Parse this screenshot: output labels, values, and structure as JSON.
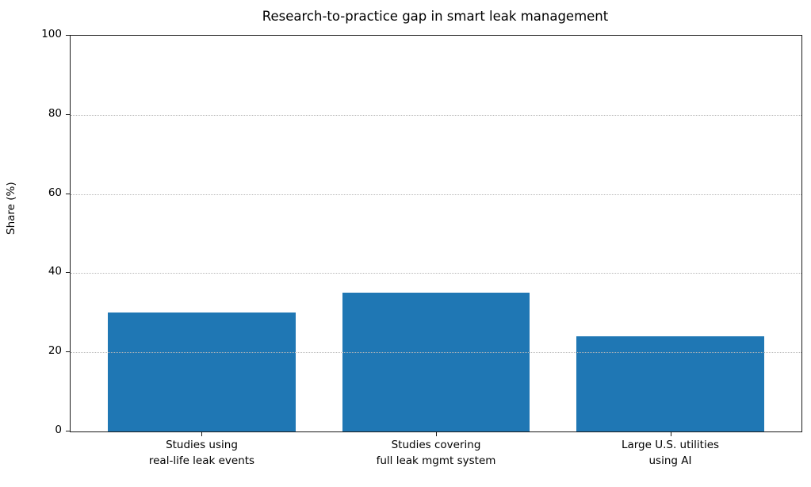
{
  "chart_data": {
    "type": "bar",
    "title": "Research-to-practice gap in smart leak management",
    "xlabel": "",
    "ylabel": "Share (%)",
    "categories": [
      "Studies using\nreal-life leak events",
      "Studies covering\nfull leak mgmt system",
      "Large U.S. utilities\nusing AI"
    ],
    "values": [
      30,
      35,
      24
    ],
    "ylim": [
      0,
      100
    ],
    "yticks": [
      0,
      20,
      40,
      60,
      80,
      100
    ],
    "bar_color": "#1f77b4",
    "grid": "horizontal-dotted",
    "grid_color": "#b8b8b8",
    "legend_position": "none",
    "bar_centers_pct": [
      17.95,
      50,
      82.05
    ],
    "bar_width_pct": 25.65
  }
}
